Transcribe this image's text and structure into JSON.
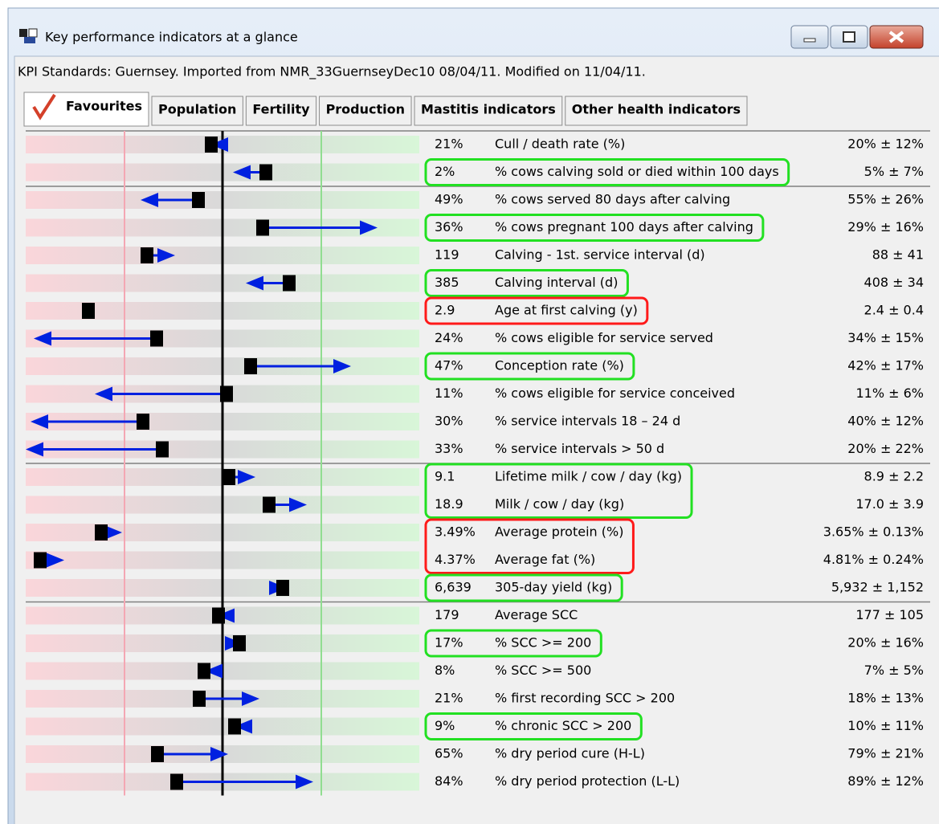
{
  "window": {
    "title": "Key performance indicators at a glance"
  },
  "status": "KPI Standards: Guernsey. Imported from NMR_33GuernseyDec10 08/04/11. Modified on 11/04/11.",
  "tabs": [
    "Favourites",
    "Population",
    "Fertility",
    "Production",
    "Mastitis indicators",
    "Other health indicators"
  ],
  "active_tab": 0,
  "groups": [
    {
      "rows": [
        {
          "value": "21%",
          "label": "Cull / death rate (%)",
          "standard": "20% ± 12%"
        },
        {
          "value": "2%",
          "label": "% cows calving sold or died within 100 days",
          "standard": "5% ± 7%",
          "highlight": "green"
        }
      ]
    },
    {
      "rows": [
        {
          "value": "49%",
          "label": "% cows served 80 days after calving",
          "standard": "55% ± 26%"
        },
        {
          "value": "36%",
          "label": "% cows pregnant 100 days after calving",
          "standard": "29% ± 16%",
          "highlight": "green"
        },
        {
          "value": "119",
          "label": "Calving - 1st. service interval (d)",
          "standard": "88 ± 41"
        },
        {
          "value": "385",
          "label": "Calving interval (d)",
          "standard": "408 ± 34",
          "highlight": "green"
        },
        {
          "value": "2.9",
          "label": "Age at first calving (y)",
          "standard": "2.4 ± 0.4",
          "highlight": "red"
        },
        {
          "value": "24%",
          "label": "% cows eligible for service served",
          "standard": "34% ± 15%"
        },
        {
          "value": "47%",
          "label": "Conception rate (%)",
          "standard": "42% ± 17%",
          "highlight": "green"
        },
        {
          "value": "11%",
          "label": "% cows eligible for service conceived",
          "standard": "11% ± 6%"
        },
        {
          "value": "30%",
          "label": "% service intervals 18 – 24 d",
          "standard": "40% ± 12%"
        },
        {
          "value": "33%",
          "label": "% service intervals > 50 d",
          "standard": "20% ± 22%"
        }
      ]
    },
    {
      "rows": [
        {
          "value": "9.1",
          "label": "Lifetime milk / cow / day (kg)",
          "standard": "8.9 ± 2.2",
          "highlight": "green"
        },
        {
          "value": "18.9",
          "label": "Milk / cow / day (kg)",
          "standard": "17.0 ± 3.9",
          "highlight": "green"
        },
        {
          "value": "3.49%",
          "label": "Average protein (%)",
          "standard": "3.65% ± 0.13%",
          "highlight": "red"
        },
        {
          "value": "4.37%",
          "label": "Average fat (%)",
          "standard": "4.81% ± 0.24%",
          "highlight": "red"
        },
        {
          "value": "6,639",
          "label": "305-day yield (kg)",
          "standard": "5,932 ± 1,152",
          "highlight": "green"
        }
      ]
    },
    {
      "rows": [
        {
          "value": "179",
          "label": "Average SCC",
          "standard": "177 ± 105"
        },
        {
          "value": "17%",
          "label": "% SCC >= 200",
          "standard": "20% ± 16%",
          "highlight": "green"
        },
        {
          "value": "8%",
          "label": "% SCC >= 500",
          "standard": "7% ± 5%"
        },
        {
          "value": "21%",
          "label": "% first recording SCC > 200",
          "standard": "18% ± 13%"
        },
        {
          "value": "9%",
          "label": "% chronic SCC > 200",
          "standard": "10% ± 11%",
          "highlight": "green"
        },
        {
          "value": "65%",
          "label": "% dry period cure (H-L)",
          "standard": "79% ± 21%"
        },
        {
          "value": "84%",
          "label": "% dry period protection (L-L)",
          "standard": "89% ± 12%"
        }
      ]
    }
  ]
}
